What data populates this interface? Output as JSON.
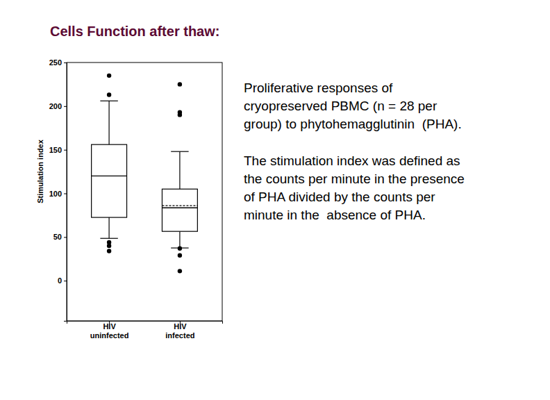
{
  "chart_data": {
    "type": "box",
    "title": "Cells Function after thaw:",
    "y_label": "Stimulation index",
    "categories": [
      "HIV\nuninfected",
      "HIV\ninfected"
    ],
    "boxes": [
      {
        "whislo": 48.5,
        "q1": 72.5,
        "median": 120,
        "q3": 156,
        "whishi": 206,
        "fliers": [
          235,
          213,
          44,
          40,
          34
        ]
      },
      {
        "whislo": 37.5,
        "q1": 56.5,
        "median": 83.5,
        "mean": 86,
        "q3": 105,
        "whishi": 148,
        "fliers": [
          225,
          193,
          190,
          37,
          29,
          11
        ]
      }
    ],
    "color": "#000000",
    "ylim": [
      -46,
      250
    ],
    "yticks": [
      0,
      50,
      100,
      150,
      200,
      250
    ],
    "annotations": [
      [
        "Proliferative responses of",
        "cryopreserved PBMC (n = 28 per",
        "group) to phytohemagglutinin  (PHA)."
      ],
      [
        "The stimulation index was defined as",
        "the counts per minute in the presence",
        "of PHA divided by the counts per",
        "minute in the  absence of PHA."
      ]
    ]
  }
}
